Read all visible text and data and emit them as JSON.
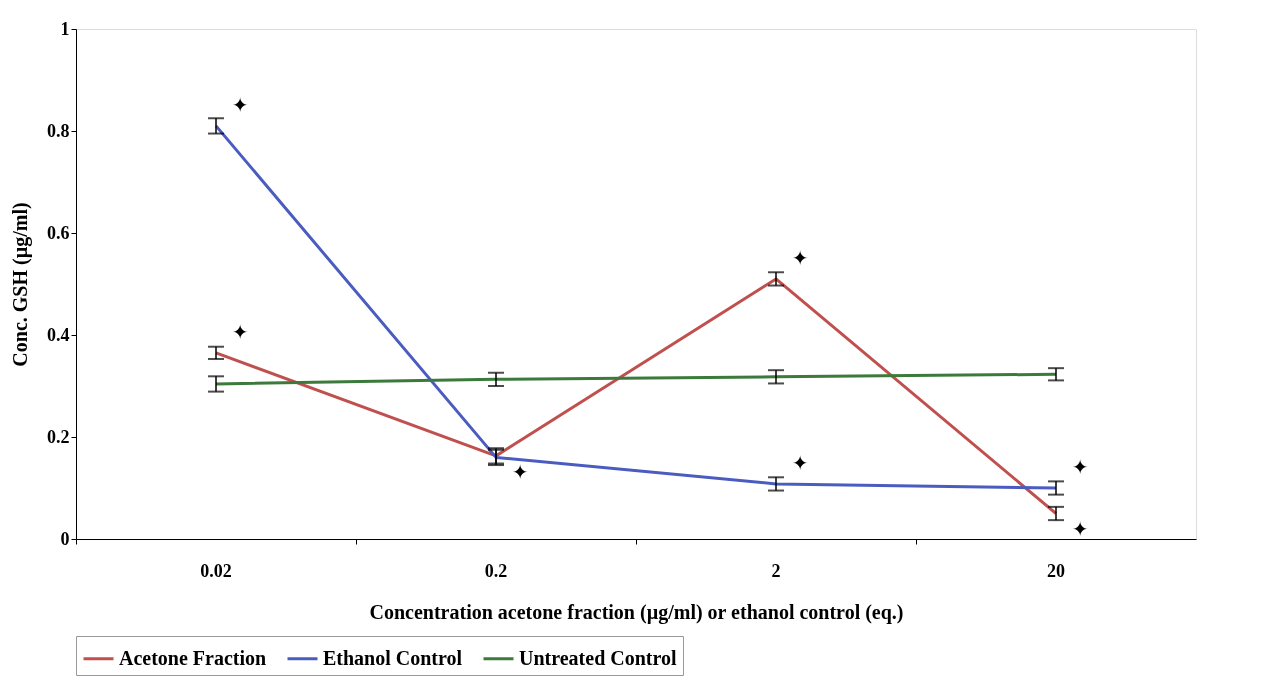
{
  "chart_data": {
    "type": "line",
    "xlabel": "Concentration acetone fraction (µg/ml) or ethanol control (eq.)",
    "ylabel": "Conc. GSH (µg/ml)",
    "categories": [
      "0.02",
      "0.2",
      "2",
      "20"
    ],
    "series": [
      {
        "name": "Acetone Fraction",
        "color": "#c0504d",
        "values": [
          0.365,
          0.163,
          0.51,
          0.05
        ],
        "errors": [
          0.012,
          0.015,
          0.013,
          0.013
        ]
      },
      {
        "name": "Ethanol Control",
        "color": "#4a5cbf",
        "values": [
          0.81,
          0.16,
          0.108,
          0.1
        ],
        "errors": [
          0.015,
          0.015,
          0.013,
          0.013
        ]
      },
      {
        "name": "Untreated Control",
        "color": "#3b7a3b",
        "values": [
          0.304,
          0.313,
          0.318,
          0.323
        ],
        "errors": [
          0.015,
          0.013,
          0.013,
          0.012
        ]
      }
    ],
    "annotations": [
      {
        "text": "✦",
        "x": "0.02",
        "y": 0.81
      },
      {
        "text": "✦",
        "x": "0.02",
        "y": 0.365
      },
      {
        "text": "✦",
        "x": "0.2",
        "y": 0.16
      },
      {
        "text": "✦",
        "x": "2",
        "y": 0.51
      },
      {
        "text": "✦",
        "x": "2",
        "y": 0.108
      },
      {
        "text": "✦",
        "x": "20",
        "y": 0.1
      },
      {
        "text": "✦",
        "x": "20",
        "y": 0.05
      }
    ],
    "ylim": [
      0,
      1
    ],
    "yticks": [
      0,
      0.2,
      0.4,
      0.6,
      0.8,
      1
    ],
    "grid": false,
    "legend": "bottom",
    "marker": "none",
    "line_style": "solid"
  }
}
